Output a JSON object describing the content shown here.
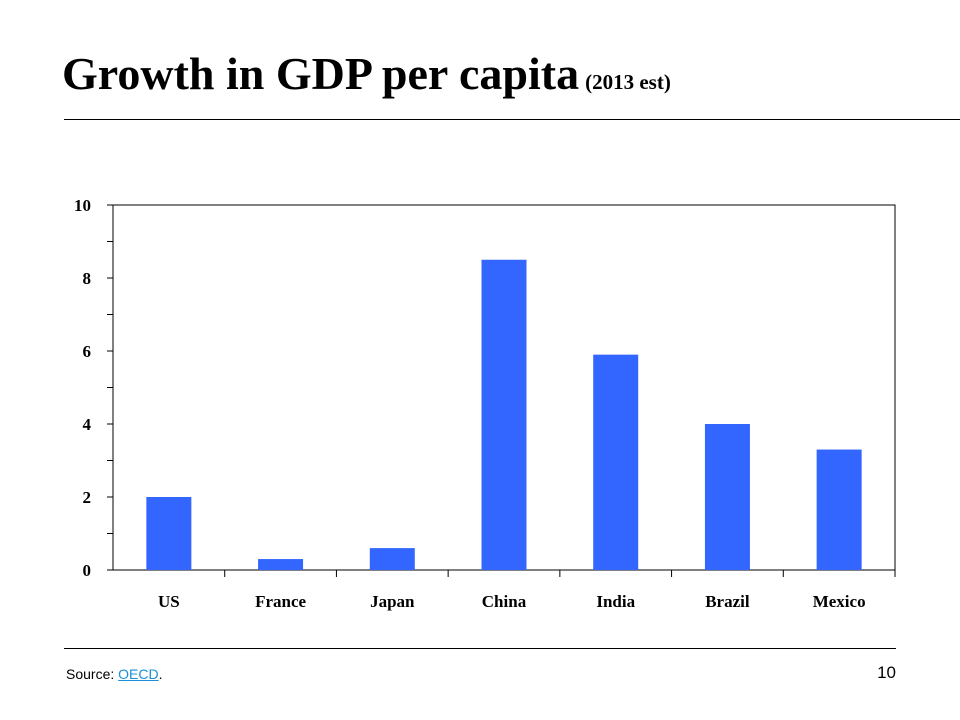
{
  "slide": {
    "title": "Growth in GDP per capita",
    "subtitle": "(2013 est)",
    "source_label": "Source:",
    "source_link": "OECD",
    "source_end": ".",
    "page_number": "10"
  },
  "chart_data": {
    "type": "bar",
    "categories": [
      "US",
      "France",
      "Japan",
      "China",
      "India",
      "Brazil",
      "Mexico"
    ],
    "values": [
      2.0,
      0.3,
      0.6,
      8.5,
      5.9,
      4.0,
      3.3
    ],
    "ylim": [
      0,
      10
    ],
    "yticks": [
      "0",
      "2",
      "4",
      "6",
      "8",
      "10"
    ],
    "xlabel": "",
    "ylabel": "",
    "bar_color": "#3366ff",
    "grid": false,
    "legend": "none"
  }
}
